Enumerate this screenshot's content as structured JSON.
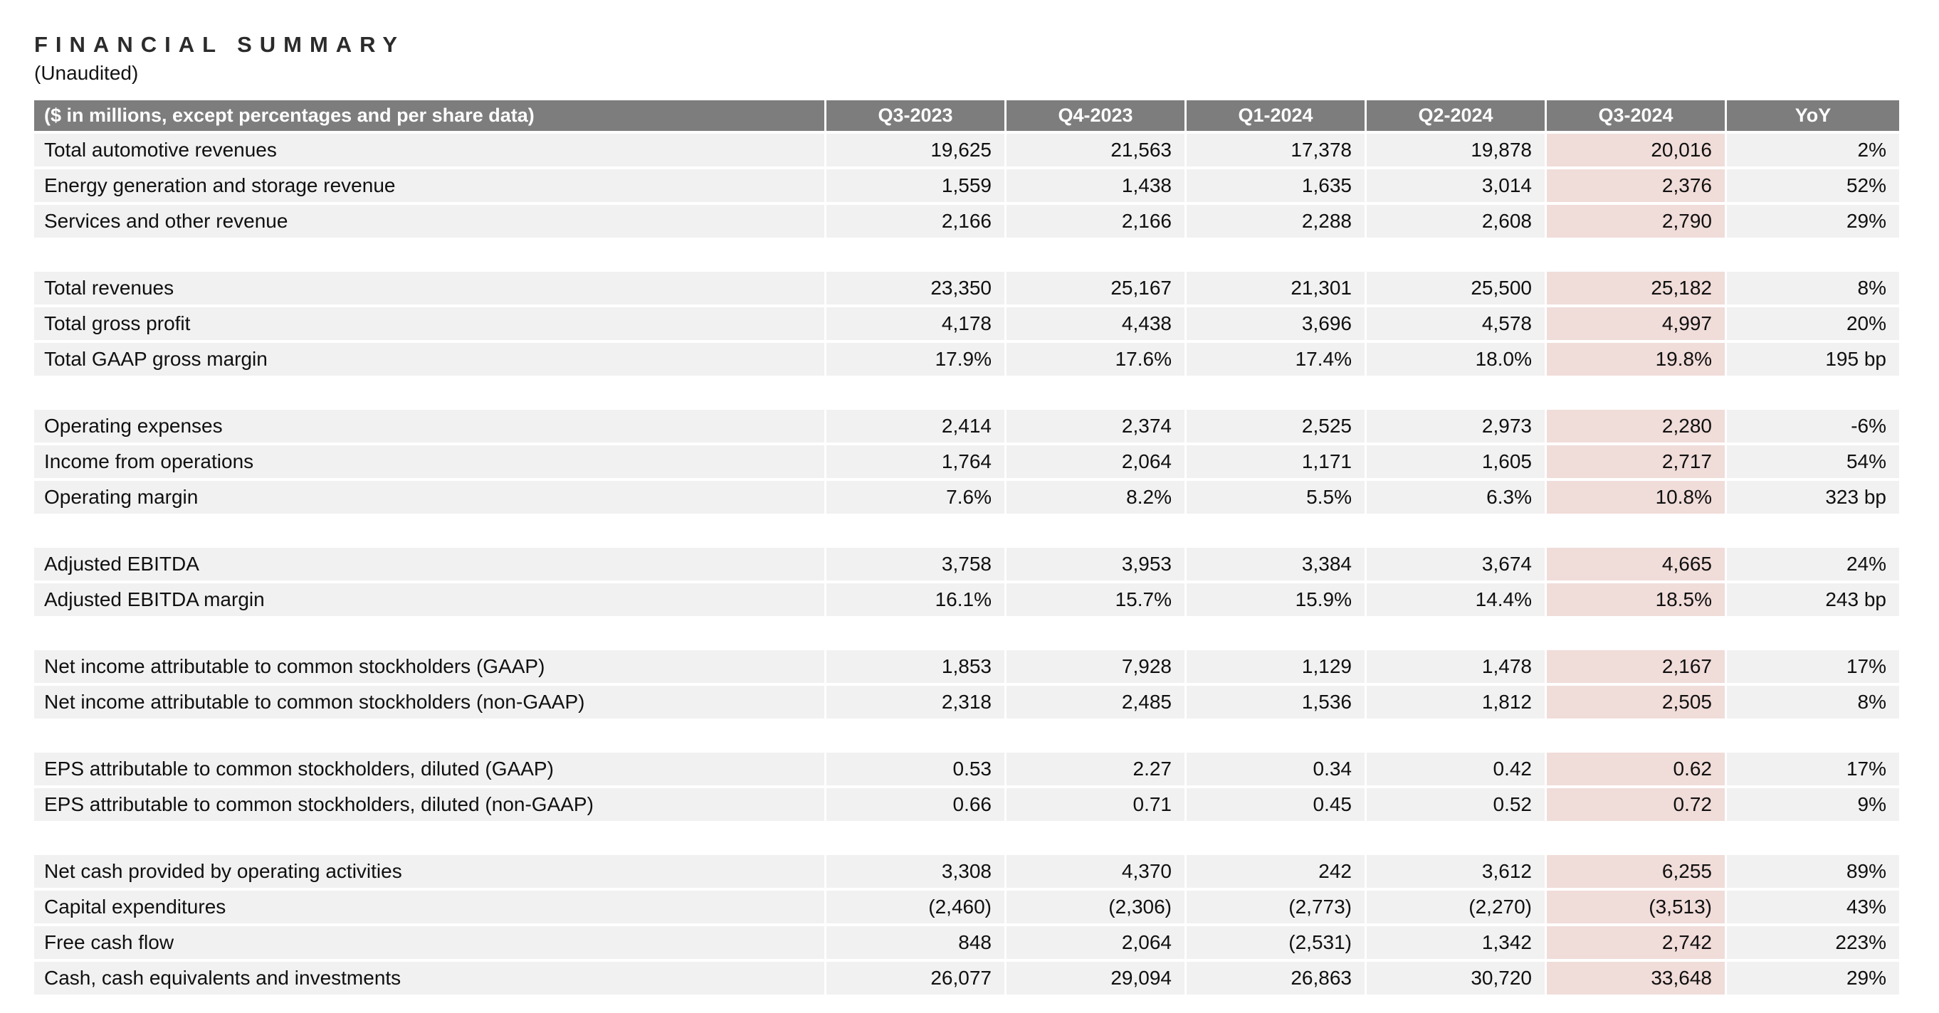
{
  "page": {
    "title": "FINANCIAL SUMMARY",
    "subtitle": "(Unaudited)"
  },
  "table": {
    "header_label": "($ in millions, except percentages and per share data)",
    "columns": [
      "Q3-2023",
      "Q4-2023",
      "Q1-2024",
      "Q2-2024",
      "Q3-2024",
      "YoY"
    ],
    "highlight_column": "Q3-2024",
    "highlight_column_index": 4,
    "colors": {
      "header_bg": "#7d7d7d",
      "header_text": "#ffffff",
      "row_bg": "#f2f1f1",
      "highlight_bg": "#f0dcd9",
      "text_color": "#101010",
      "page_bg": "#ffffff"
    },
    "groups": [
      {
        "rows": [
          {
            "label": "Total automotive revenues",
            "values": [
              "19,625",
              "21,563",
              "17,378",
              "19,878",
              "20,016",
              "2%"
            ]
          },
          {
            "label": "Energy generation and storage revenue",
            "values": [
              "1,559",
              "1,438",
              "1,635",
              "3,014",
              "2,376",
              "52%"
            ]
          },
          {
            "label": "Services and other revenue",
            "values": [
              "2,166",
              "2,166",
              "2,288",
              "2,608",
              "2,790",
              "29%"
            ]
          }
        ]
      },
      {
        "rows": [
          {
            "label": "Total revenues",
            "values": [
              "23,350",
              "25,167",
              "21,301",
              "25,500",
              "25,182",
              "8%"
            ]
          },
          {
            "label": "Total gross profit",
            "values": [
              "4,178",
              "4,438",
              "3,696",
              "4,578",
              "4,997",
              "20%"
            ]
          },
          {
            "label": "Total GAAP gross margin",
            "values": [
              "17.9%",
              "17.6%",
              "17.4%",
              "18.0%",
              "19.8%",
              "195 bp"
            ]
          }
        ]
      },
      {
        "rows": [
          {
            "label": "Operating expenses",
            "values": [
              "2,414",
              "2,374",
              "2,525",
              "2,973",
              "2,280",
              "-6%"
            ]
          },
          {
            "label": "Income from operations",
            "values": [
              "1,764",
              "2,064",
              "1,171",
              "1,605",
              "2,717",
              "54%"
            ]
          },
          {
            "label": "Operating margin",
            "values": [
              "7.6%",
              "8.2%",
              "5.5%",
              "6.3%",
              "10.8%",
              "323 bp"
            ]
          }
        ]
      },
      {
        "rows": [
          {
            "label": "Adjusted EBITDA",
            "values": [
              "3,758",
              "3,953",
              "3,384",
              "3,674",
              "4,665",
              "24%"
            ]
          },
          {
            "label": "Adjusted EBITDA margin",
            "values": [
              "16.1%",
              "15.7%",
              "15.9%",
              "14.4%",
              "18.5%",
              "243 bp"
            ]
          }
        ]
      },
      {
        "rows": [
          {
            "label": "Net income attributable to common stockholders (GAAP)",
            "values": [
              "1,853",
              "7,928",
              "1,129",
              "1,478",
              "2,167",
              "17%"
            ]
          },
          {
            "label": "Net income attributable to common stockholders (non-GAAP)",
            "values": [
              "2,318",
              "2,485",
              "1,536",
              "1,812",
              "2,505",
              "8%"
            ]
          }
        ]
      },
      {
        "rows": [
          {
            "label": "EPS attributable to common stockholders, diluted (GAAP)",
            "values": [
              "0.53",
              "2.27",
              "0.34",
              "0.42",
              "0.62",
              "17%"
            ]
          },
          {
            "label": "EPS attributable to common stockholders, diluted (non-GAAP)",
            "values": [
              "0.66",
              "0.71",
              "0.45",
              "0.52",
              "0.72",
              "9%"
            ]
          }
        ]
      },
      {
        "rows": [
          {
            "label": "Net cash provided by operating activities",
            "values": [
              "3,308",
              "4,370",
              "242",
              "3,612",
              "6,255",
              "89%"
            ]
          },
          {
            "label": "Capital expenditures",
            "values": [
              "(2,460)",
              "(2,306)",
              "(2,773)",
              "(2,270)",
              "(3,513)",
              "43%"
            ]
          },
          {
            "label": "Free cash flow",
            "values": [
              "848",
              "2,064",
              "(2,531)",
              "1,342",
              "2,742",
              "223%"
            ]
          },
          {
            "label": "Cash, cash equivalents and investments",
            "values": [
              "26,077",
              "29,094",
              "26,863",
              "30,720",
              "33,648",
              "29%"
            ]
          }
        ]
      }
    ]
  }
}
